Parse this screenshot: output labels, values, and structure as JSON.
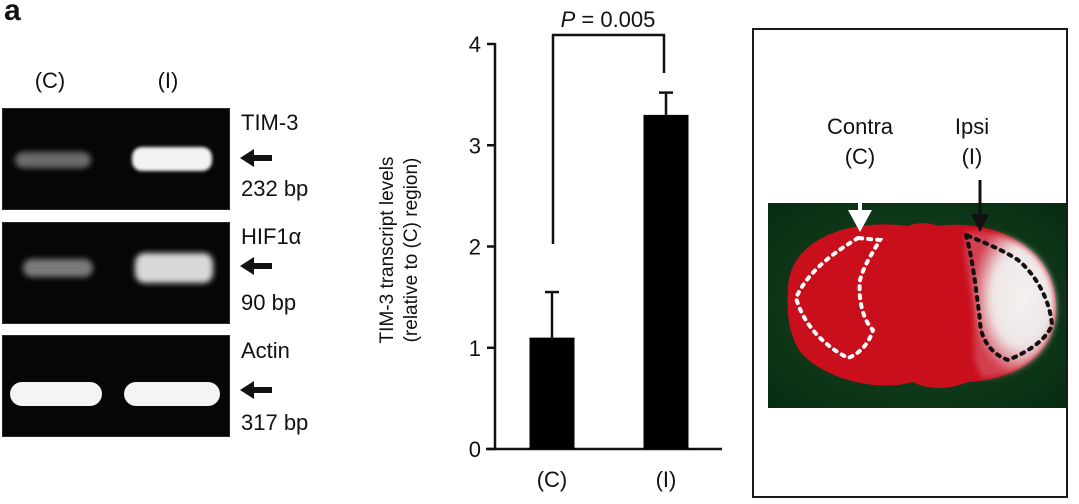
{
  "panel_letter": "a",
  "gel": {
    "lanes": [
      "(C)",
      "(I)"
    ],
    "rows": [
      {
        "gene": "TIM-3",
        "size": "232 bp",
        "intensity_C": "weak",
        "intensity_I": "strong"
      },
      {
        "gene": "HIF1α",
        "size": "90 bp",
        "intensity_C": "weak",
        "intensity_I": "strong"
      },
      {
        "gene": "Actin",
        "size": "317 bp",
        "intensity_C": "strong",
        "intensity_I": "strong"
      }
    ]
  },
  "chart_data": {
    "type": "bar",
    "title": "",
    "categories": [
      "(C)",
      "(I)"
    ],
    "values": [
      1.1,
      3.3
    ],
    "error_bars": [
      0.45,
      0.22
    ],
    "ylabel": "TIM-3 transcript levels (relative to (C) region)",
    "ylabel_line1": "TIM-3 transcript levels",
    "ylabel_line2": "(relative to (C) region)",
    "xlabel": "",
    "ylim": [
      0,
      4
    ],
    "yticks": [
      "0",
      "1",
      "2",
      "3",
      "4"
    ],
    "grid": false,
    "annotation": {
      "text_italic": "P",
      "text_rest": " = 0.005",
      "between": [
        "(C)",
        "(I)"
      ]
    },
    "bar_color": "#000000"
  },
  "brain": {
    "contra_label": "Contra",
    "contra_abbr": "(C)",
    "ipsi_label": "Ipsi",
    "ipsi_abbr": "(I)",
    "colors": {
      "background": "#0b3a14",
      "tissue": "#cc1018",
      "infarct": "#f2f0ee"
    }
  }
}
